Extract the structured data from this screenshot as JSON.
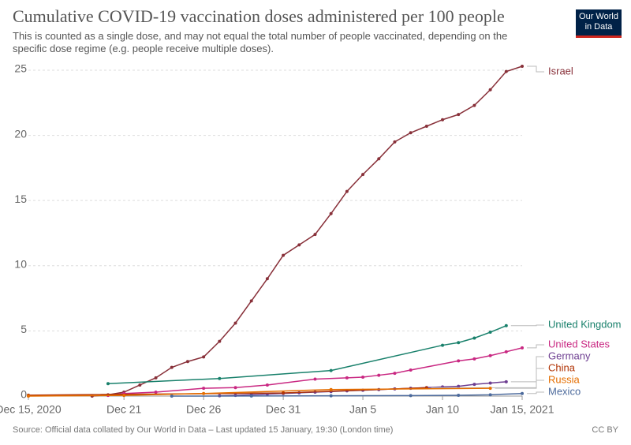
{
  "chart_data": {
    "type": "line",
    "title": "Cumulative COVID-19 vaccination doses administered per 100 people",
    "subtitle": "This is counted as a single dose, and may not equal the total number of people vaccinated, depending on the specific dose regime (e.g. people receive multiple doses).",
    "source": "Source: Official data collated by Our World in Data – Last updated 15 January, 19:30 (London time)",
    "license": "CC BY",
    "logo": "Our World in Data",
    "xlim": [
      "2020-12-15",
      "2021-01-15"
    ],
    "xticks": [
      {
        "value": "2020-12-15",
        "label": "Dec 15, 2020"
      },
      {
        "value": "2020-12-21",
        "label": "Dec 21"
      },
      {
        "value": "2020-12-26",
        "label": "Dec 26"
      },
      {
        "value": "2020-12-31",
        "label": "Dec 31"
      },
      {
        "value": "2021-01-05",
        "label": "Jan 5"
      },
      {
        "value": "2021-01-10",
        "label": "Jan 10"
      },
      {
        "value": "2021-01-15",
        "label": "Jan 15, 2021"
      }
    ],
    "ylim": [
      0,
      25.5
    ],
    "yticks": [
      0,
      5,
      10,
      15,
      20,
      25
    ],
    "grid": true,
    "series": [
      {
        "name": "Israel",
        "color": "#883039",
        "x": [
          "2020-12-19",
          "2020-12-20",
          "2020-12-21",
          "2020-12-22",
          "2020-12-23",
          "2020-12-24",
          "2020-12-25",
          "2020-12-26",
          "2020-12-27",
          "2020-12-28",
          "2020-12-29",
          "2020-12-30",
          "2020-12-31",
          "2021-01-01",
          "2021-01-02",
          "2021-01-03",
          "2021-01-04",
          "2021-01-05",
          "2021-01-06",
          "2021-01-07",
          "2021-01-08",
          "2021-01-09",
          "2021-01-10",
          "2021-01-11",
          "2021-01-12",
          "2021-01-13",
          "2021-01-14",
          "2021-01-15"
        ],
        "values": [
          0,
          0.1,
          0.3,
          0.85,
          1.4,
          2.2,
          2.65,
          3.0,
          4.2,
          5.6,
          7.3,
          9.0,
          10.8,
          11.6,
          12.4,
          14.0,
          15.7,
          17.0,
          18.2,
          19.5,
          20.2,
          20.7,
          21.2,
          21.6,
          22.3,
          23.5,
          24.9,
          25.3
        ]
      },
      {
        "name": "United Kingdom",
        "color": "#18806b",
        "x": [
          "2020-12-20",
          "2020-12-27",
          "2021-01-03",
          "2021-01-10",
          "2021-01-11",
          "2021-01-12",
          "2021-01-13",
          "2021-01-14"
        ],
        "values": [
          0.95,
          1.35,
          1.96,
          3.9,
          4.1,
          4.45,
          4.9,
          5.4
        ]
      },
      {
        "name": "United States",
        "color": "#c92882",
        "x": [
          "2020-12-20",
          "2020-12-21",
          "2020-12-23",
          "2020-12-26",
          "2020-12-28",
          "2020-12-30",
          "2021-01-02",
          "2021-01-04",
          "2021-01-05",
          "2021-01-06",
          "2021-01-07",
          "2021-01-08",
          "2021-01-11",
          "2021-01-12",
          "2021-01-13",
          "2021-01-14",
          "2021-01-15"
        ],
        "values": [
          0.05,
          0.2,
          0.3,
          0.6,
          0.65,
          0.85,
          1.3,
          1.4,
          1.45,
          1.6,
          1.75,
          2.0,
          2.7,
          2.85,
          3.1,
          3.4,
          3.7
        ]
      },
      {
        "name": "Germany",
        "color": "#6d3e91",
        "x": [
          "2020-12-27",
          "2020-12-28",
          "2020-12-29",
          "2020-12-30",
          "2020-12-31",
          "2021-01-01",
          "2021-01-02",
          "2021-01-03",
          "2021-01-04",
          "2021-01-05",
          "2021-01-06",
          "2021-01-07",
          "2021-01-08",
          "2021-01-09",
          "2021-01-10",
          "2021-01-11",
          "2021-01-12",
          "2021-01-13",
          "2021-01-14"
        ],
        "values": [
          0.02,
          0.05,
          0.1,
          0.15,
          0.2,
          0.25,
          0.3,
          0.35,
          0.4,
          0.45,
          0.5,
          0.55,
          0.6,
          0.65,
          0.7,
          0.75,
          0.9,
          1.0,
          1.1
        ]
      },
      {
        "name": "China",
        "color": "#b13507",
        "x": [
          "2020-12-15",
          "2020-12-31",
          "2021-01-09"
        ],
        "values": [
          0.07,
          0.24,
          0.64
        ]
      },
      {
        "name": "Russia",
        "color": "#e56e00",
        "x": [
          "2020-12-15",
          "2020-12-21",
          "2020-12-26",
          "2021-01-03",
          "2021-01-13"
        ],
        "values": [
          0,
          0.05,
          0.2,
          0.5,
          0.6
        ]
      },
      {
        "name": "Mexico",
        "color": "#4c6a9c",
        "x": [
          "2020-12-24",
          "2020-12-29",
          "2021-01-03",
          "2021-01-08",
          "2021-01-11",
          "2021-01-13",
          "2021-01-15"
        ],
        "values": [
          0,
          0.01,
          0.02,
          0.04,
          0.06,
          0.1,
          0.2
        ]
      }
    ]
  }
}
